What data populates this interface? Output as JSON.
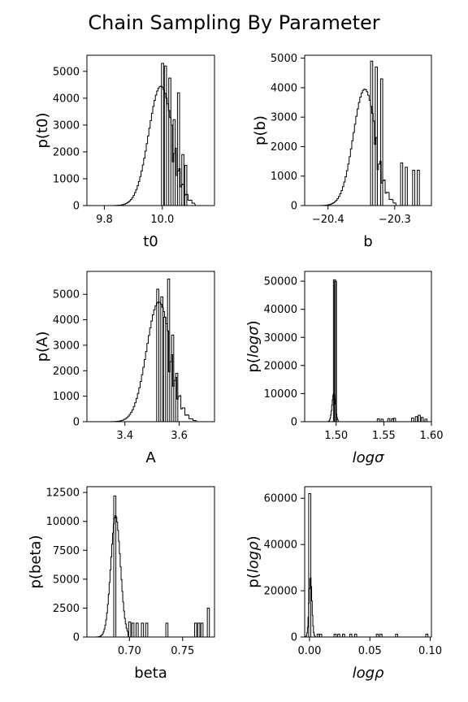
{
  "title": "Chain Sampling By Parameter",
  "chart_data": [
    {
      "type": "histogram",
      "xlabel": "t0",
      "ylabel": "p(t0)",
      "italic": false,
      "xlim": [
        9.74,
        10.18
      ],
      "ylim": [
        0,
        5600
      ],
      "xticks": [
        9.8,
        10.0
      ],
      "xticklabels": [
        "9.8",
        "10.0"
      ],
      "yticks": [
        0,
        1000,
        2000,
        3000,
        4000,
        5000
      ],
      "yticklabels": [
        "0",
        "1000",
        "2000",
        "3000",
        "4000",
        "5000"
      ],
      "peak": 4450,
      "mu": 9.995,
      "sigma": 0.042,
      "binw": 0.0045,
      "cut": 0.855,
      "hi": 10.11,
      "spikes": [
        [
          10.0,
          5300
        ],
        [
          10.01,
          5200
        ],
        [
          10.025,
          4750
        ],
        [
          10.04,
          3200
        ],
        [
          10.055,
          4200
        ],
        [
          10.07,
          1900
        ],
        [
          10.08,
          1500
        ]
      ]
    },
    {
      "type": "histogram",
      "xlabel": "b",
      "ylabel": "p(b)",
      "italic": false,
      "xlim": [
        -20.435,
        -20.245
      ],
      "ylim": [
        0,
        5100
      ],
      "xticks": [
        -20.4,
        -20.3
      ],
      "xticklabels": [
        "−20.4",
        "−20.3"
      ],
      "yticks": [
        0,
        1000,
        2000,
        3000,
        4000,
        5000
      ],
      "yticklabels": [
        "0",
        "1000",
        "2000",
        "3000",
        "4000",
        "5000"
      ],
      "peak": 3950,
      "mu": -20.345,
      "sigma": 0.017,
      "binw": 0.002,
      "cut": 0.835,
      "hi": -20.3,
      "spikes": [
        [
          -20.335,
          4900
        ],
        [
          -20.328,
          4700
        ],
        [
          -20.32,
          4300
        ],
        [
          -20.29,
          1450
        ],
        [
          -20.283,
          1300
        ],
        [
          -20.272,
          1200
        ],
        [
          -20.265,
          1200
        ]
      ]
    },
    {
      "type": "histogram",
      "xlabel": "A",
      "ylabel": "p(A)",
      "italic": false,
      "xlim": [
        3.26,
        3.73
      ],
      "ylim": [
        0,
        5900
      ],
      "xticks": [
        3.4,
        3.6
      ],
      "xticklabels": [
        "3.4",
        "3.6"
      ],
      "yticks": [
        0,
        1000,
        2000,
        3000,
        4000,
        5000
      ],
      "yticklabels": [
        "0",
        "1000",
        "2000",
        "3000",
        "4000",
        "5000"
      ],
      "peak": 4700,
      "mu": 3.525,
      "sigma": 0.045,
      "binw": 0.005,
      "cut": 0.78,
      "hi": 3.66,
      "spikes": [
        [
          3.52,
          5200
        ],
        [
          3.535,
          4900
        ],
        [
          3.56,
          5600
        ],
        [
          3.545,
          4100
        ],
        [
          3.575,
          3400
        ],
        [
          3.59,
          1900
        ]
      ]
    },
    {
      "type": "histogram",
      "xlabel": "logσ",
      "ylabel": "p(logσ)",
      "italic": true,
      "xlim": [
        1.467,
        1.6
      ],
      "ylim": [
        0,
        53500
      ],
      "xticks": [
        1.5,
        1.55,
        1.6
      ],
      "xticklabels": [
        "1.50",
        "1.55",
        "1.60"
      ],
      "yticks": [
        0,
        10000,
        20000,
        30000,
        40000,
        50000
      ],
      "yticklabels": [
        "0",
        "10000",
        "20000",
        "30000",
        "40000",
        "50000"
      ],
      "peak": 10000,
      "mu": 1.4975,
      "sigma": 0.0018,
      "binw": 0.0006,
      "cut": 0.0,
      "hi": 1.5018,
      "spikes": [
        [
          1.498,
          50500
        ],
        [
          1.499,
          50000
        ],
        [
          1.544,
          1000
        ],
        [
          1.548,
          900
        ],
        [
          1.555,
          1100
        ],
        [
          1.559,
          1000
        ],
        [
          1.561,
          1200
        ],
        [
          1.58,
          1300
        ],
        [
          1.584,
          1800
        ],
        [
          1.587,
          2300
        ],
        [
          1.59,
          1500
        ],
        [
          1.594,
          900
        ]
      ]
    },
    {
      "type": "histogram",
      "xlabel": "beta",
      "ylabel": "p(beta)",
      "italic": false,
      "xlim": [
        0.66,
        0.78
      ],
      "ylim": [
        0,
        13000
      ],
      "xticks": [
        0.7,
        0.75
      ],
      "xticklabels": [
        "0.70",
        "0.75"
      ],
      "yticks": [
        0,
        2500,
        5000,
        7500,
        10000,
        12500
      ],
      "yticklabels": [
        "0",
        "2500",
        "5000",
        "7500",
        "10000",
        "12500"
      ],
      "peak": 10500,
      "mu": 0.687,
      "sigma": 0.0045,
      "binw": 0.0008,
      "cut": 0.0,
      "hi": 0.698,
      "spikes": [
        [
          0.686,
          12200
        ],
        [
          0.7,
          1300
        ],
        [
          0.703,
          1200
        ],
        [
          0.707,
          1200
        ],
        [
          0.712,
          1200
        ],
        [
          0.716,
          1200
        ],
        [
          0.735,
          1200
        ],
        [
          0.762,
          1200
        ],
        [
          0.765,
          1200
        ],
        [
          0.768,
          1200
        ],
        [
          0.774,
          2500
        ]
      ]
    },
    {
      "type": "histogram",
      "xlabel": "logρ",
      "ylabel": "p(logρ)",
      "italic": true,
      "xlim": [
        -0.004,
        0.101
      ],
      "ylim": [
        0,
        65000
      ],
      "xticks": [
        0.0,
        0.05,
        0.1
      ],
      "xticklabels": [
        "0.00",
        "0.05",
        "0.10"
      ],
      "yticks": [
        0,
        20000,
        40000,
        60000
      ],
      "yticklabels": [
        "0",
        "20000",
        "40000",
        "60000"
      ],
      "peak": 26000,
      "mu": 0.0008,
      "sigma": 0.0012,
      "binw": 0.0005,
      "cut": 0.0,
      "hi": 0.006,
      "spikes": [
        [
          0.0,
          62000
        ],
        [
          0.007,
          1200
        ],
        [
          0.009,
          1200
        ],
        [
          0.021,
          1200
        ],
        [
          0.024,
          1200
        ],
        [
          0.028,
          1200
        ],
        [
          0.034,
          1200
        ],
        [
          0.038,
          1200
        ],
        [
          0.056,
          1200
        ],
        [
          0.059,
          1200
        ],
        [
          0.072,
          1200
        ],
        [
          0.097,
          1200
        ]
      ]
    }
  ]
}
